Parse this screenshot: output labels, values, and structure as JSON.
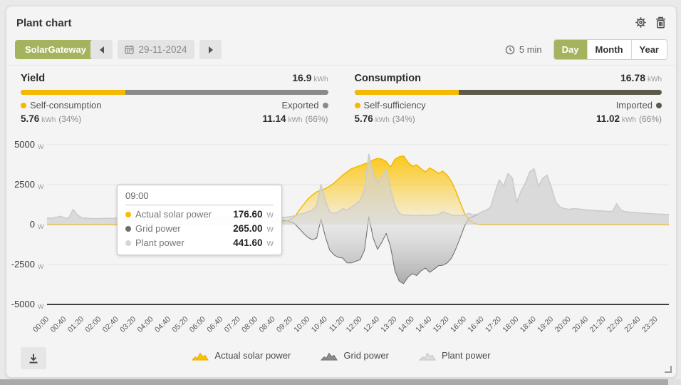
{
  "header": {
    "title": "Plant chart"
  },
  "icons": {
    "settings": "gear-icon",
    "delete": "trash-icon",
    "date": "calendar-icon",
    "interval": "clock-icon",
    "previous": "chevron-left-icon",
    "next": "chevron-right-icon",
    "export": "download-icon",
    "resize": "corner-resize-icon"
  },
  "toolbar": {
    "device_label": "SolarGateway",
    "date_value": "29-11-2024",
    "interval_label": "5 min",
    "range_tabs": [
      {
        "label": "Day",
        "active": true
      },
      {
        "label": "Month",
        "active": false
      },
      {
        "label": "Year",
        "active": false
      }
    ]
  },
  "stats": {
    "yield": {
      "title": "Yield",
      "total_value": "16.9",
      "total_unit": "kWh",
      "left_label": "Self-consumption",
      "right_label": "Exported",
      "left_value": "5.76",
      "left_unit": "kWh",
      "left_pct": "(34%)",
      "right_value": "11.14",
      "right_unit": "kWh",
      "right_pct": "(66%)",
      "split_pct": 34,
      "left_color": "#f5b800",
      "right_color": "#8a8a8a"
    },
    "consumption": {
      "title": "Consumption",
      "total_value": "16.78",
      "total_unit": "kWh",
      "left_label": "Self-sufficiency",
      "right_label": "Imported",
      "left_value": "5.76",
      "left_unit": "kWh",
      "left_pct": "(34%)",
      "right_value": "11.02",
      "right_unit": "kWh",
      "right_pct": "(66%)",
      "split_pct": 34,
      "left_color": "#f5b800",
      "right_color": "#5d5a4b"
    }
  },
  "tooltip": {
    "time": "09:00",
    "rows": [
      {
        "label": "Actual solar power",
        "value": "176.60",
        "unit": "W",
        "color": "#f8bc00"
      },
      {
        "label": "Grid power",
        "value": "265.00",
        "unit": "W",
        "color": "#6e6e6e"
      },
      {
        "label": "Plant power",
        "value": "441.60",
        "unit": "W",
        "color": "#d6d6d6"
      }
    ]
  },
  "legend": [
    {
      "label": "Actual solar power",
      "color": "#fcc200",
      "stroke": "#e8ae00"
    },
    {
      "label": "Grid power",
      "color": "#8c8c8c",
      "stroke": "#6e6e6e"
    },
    {
      "label": "Plant power",
      "color": "#dcdcdc",
      "stroke": "#c4c4c4"
    }
  ],
  "chart_data": {
    "type": "area",
    "title": "",
    "xlabel": "",
    "ylabel": "W",
    "y_unit": "W",
    "ylim": [
      -5000,
      5000
    ],
    "y_ticks": [
      5000,
      2500,
      0,
      -2500,
      -5000
    ],
    "grid": true,
    "legend_position": "bottom",
    "x_start": "00:00",
    "x_step_minutes": 10,
    "x_tick_labels": [
      "00:00",
      "00:40",
      "01:20",
      "02:00",
      "02:40",
      "03:20",
      "04:00",
      "04:40",
      "05:20",
      "06:00",
      "06:40",
      "07:20",
      "08:00",
      "08:40",
      "09:20",
      "10:00",
      "10:40",
      "11:20",
      "12:00",
      "12:40",
      "13:20",
      "14:00",
      "14:40",
      "15:20",
      "16:00",
      "16:40",
      "17:20",
      "18:00",
      "18:40",
      "19:20",
      "20:00",
      "20:40",
      "21:20",
      "22:00",
      "22:40",
      "23:20"
    ],
    "series": [
      {
        "name": "Actual solar power",
        "color": "#fcc200",
        "values": [
          0,
          0,
          0,
          0,
          0,
          0,
          0,
          0,
          0,
          0,
          0,
          0,
          0,
          0,
          0,
          0,
          0,
          0,
          0,
          0,
          0,
          0,
          0,
          0,
          0,
          0,
          0,
          0,
          0,
          0,
          0,
          0,
          0,
          0,
          0,
          0,
          0,
          0,
          0,
          0,
          0,
          0,
          0,
          0,
          0,
          0,
          0,
          0,
          0,
          20,
          50,
          90,
          130,
          155,
          176.6,
          220,
          320,
          520,
          900,
          1250,
          1600,
          1850,
          2050,
          2150,
          2250,
          2400,
          2600,
          2850,
          3100,
          3300,
          3500,
          3600,
          3700,
          3800,
          3900,
          4050,
          4150,
          4100,
          3950,
          3600,
          4100,
          4250,
          4300,
          3900,
          3650,
          3750,
          3500,
          3300,
          3550,
          3400,
          3200,
          3350,
          3100,
          2700,
          2100,
          1400,
          700,
          300,
          100,
          20,
          0,
          0,
          0,
          0,
          0,
          0,
          0,
          0,
          0,
          0,
          0,
          0,
          0,
          0,
          0,
          0,
          0,
          0,
          0,
          0,
          0,
          0,
          0,
          0,
          0,
          0,
          0,
          0,
          0,
          0,
          0,
          0,
          0,
          0,
          0,
          0,
          0,
          0,
          0,
          0,
          0,
          0,
          0,
          0
        ]
      },
      {
        "name": "Grid power",
        "color": "#6b6b6b",
        "values": [
          420,
          390,
          450,
          520,
          430,
          400,
          950,
          600,
          430,
          400,
          380,
          370,
          380,
          390,
          400,
          380,
          430,
          400,
          380,
          370,
          380,
          390,
          380,
          370,
          380,
          390,
          400,
          380,
          370,
          380,
          390,
          400,
          420,
          400,
          390,
          400,
          420,
          440,
          430,
          450,
          480,
          460,
          450,
          470,
          490,
          470,
          460,
          480,
          500,
          460,
          410,
          360,
          310,
          275,
          265,
          240,
          180,
          40,
          -250,
          -550,
          -800,
          -950,
          -850,
          350,
          -750,
          -1600,
          -1900,
          -2050,
          -2100,
          -2400,
          -2400,
          -2300,
          -2200,
          -1600,
          500,
          -850,
          -1550,
          -1100,
          -550,
          -1400,
          -2900,
          -3550,
          -3700,
          -3300,
          -3070,
          -3190,
          -2900,
          -2720,
          -2990,
          -2800,
          -2580,
          -2550,
          -2400,
          -2100,
          -1520,
          -840,
          -100,
          400,
          500,
          630,
          800,
          900,
          1100,
          2000,
          2800,
          2400,
          3200,
          2900,
          1400,
          2100,
          2600,
          3300,
          3500,
          2400,
          2900,
          3100,
          2300,
          1400,
          1100,
          1000,
          950,
          1000,
          980,
          950,
          920,
          900,
          880,
          860,
          850,
          830,
          820,
          1300,
          900,
          800,
          780,
          760,
          740,
          720,
          700,
          680,
          660,
          650,
          640,
          630
        ]
      },
      {
        "name": "Plant power",
        "color": "#d3d3d3",
        "values": [
          420,
          390,
          450,
          520,
          430,
          400,
          950,
          600,
          430,
          400,
          380,
          370,
          380,
          390,
          400,
          380,
          430,
          400,
          380,
          370,
          380,
          390,
          380,
          370,
          380,
          390,
          400,
          380,
          370,
          380,
          390,
          400,
          420,
          400,
          390,
          400,
          420,
          440,
          430,
          450,
          480,
          460,
          450,
          470,
          490,
          470,
          460,
          480,
          500,
          480,
          460,
          450,
          440,
          430,
          441.6,
          460,
          500,
          560,
          650,
          700,
          800,
          900,
          1200,
          2500,
          1500,
          800,
          700,
          800,
          1000,
          900,
          1100,
          1300,
          1500,
          2200,
          4400,
          3200,
          2600,
          3000,
          3400,
          2200,
          1200,
          700,
          600,
          600,
          580,
          560,
          600,
          580,
          560,
          600,
          620,
          800,
          700,
          600,
          580,
          560,
          600,
          700,
          600,
          650,
          800,
          900,
          1100,
          2000,
          2800,
          2400,
          3200,
          2900,
          1400,
          2100,
          2600,
          3300,
          3500,
          2400,
          2900,
          3100,
          2300,
          1400,
          1100,
          1000,
          950,
          1000,
          980,
          950,
          920,
          900,
          880,
          860,
          850,
          830,
          820,
          1300,
          900,
          800,
          780,
          760,
          740,
          720,
          700,
          680,
          660,
          650,
          640,
          630
        ]
      }
    ]
  }
}
